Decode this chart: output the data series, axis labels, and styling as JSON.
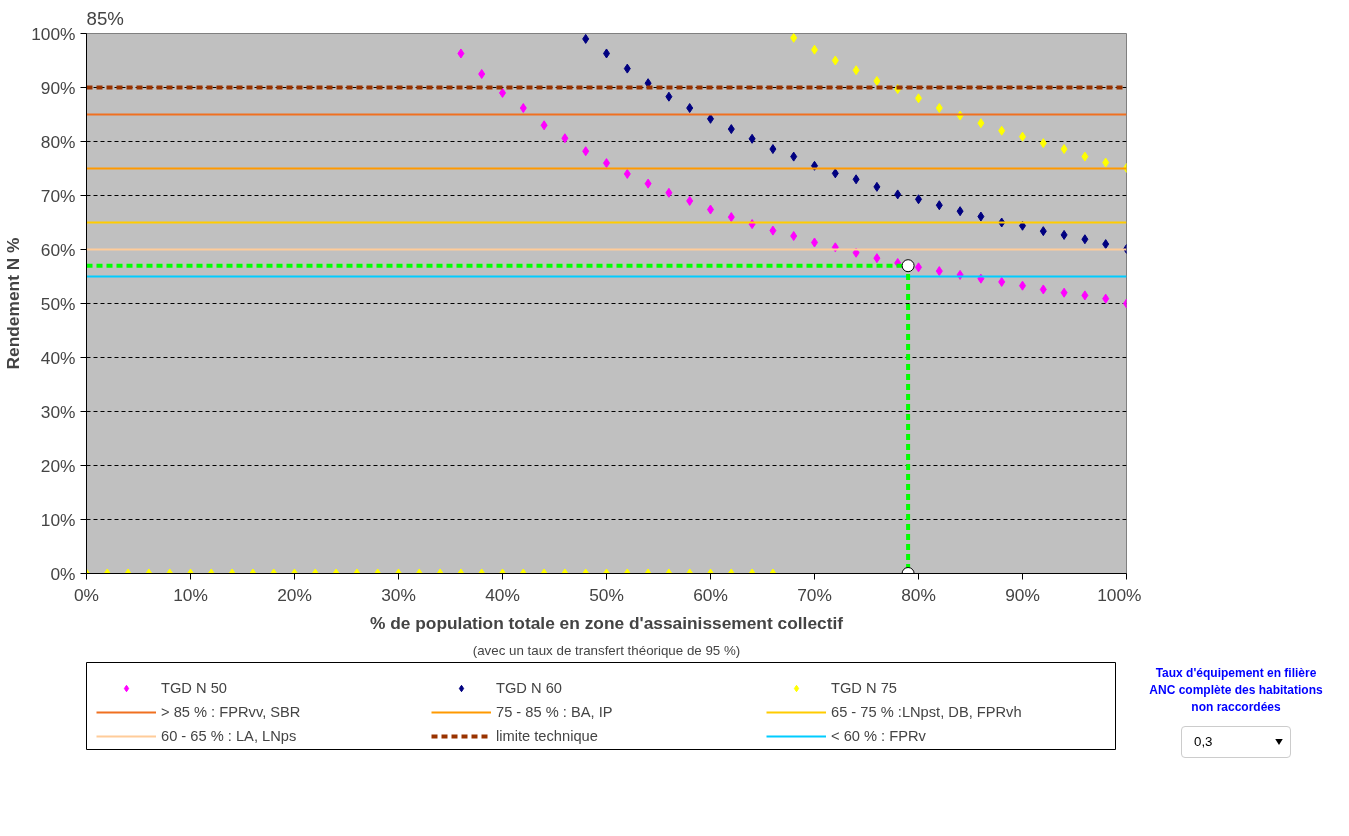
{
  "chart_data": {
    "type": "scatter",
    "xlabel": "% de population totale en zone d'assainissement collectif",
    "ylabel": "Rendement N %",
    "annotations": [
      "85%",
      "(avec un taux de transfert théorique de 95 %)",
      "Taux d'équipement en filière ANC complète des habitations non raccordées",
      "0,3"
    ],
    "x": [
      0,
      2,
      4,
      6,
      8,
      10,
      12,
      14,
      16,
      18,
      20,
      22,
      24,
      26,
      28,
      30,
      32,
      34,
      36,
      38,
      40,
      42,
      44,
      46,
      48,
      50,
      52,
      54,
      56,
      58,
      60,
      62,
      64,
      66,
      68,
      70,
      72,
      74,
      76,
      78,
      80,
      82,
      84,
      86,
      88,
      90,
      92,
      94,
      96,
      98,
      100
    ],
    "xlim": [
      0,
      100
    ],
    "ylim": [
      0,
      100
    ],
    "xticks": [
      {
        "value": 0,
        "label": "0%"
      },
      {
        "value": 10,
        "label": "10%"
      },
      {
        "value": 20,
        "label": "20%"
      },
      {
        "value": 30,
        "label": "30%"
      },
      {
        "value": 40,
        "label": "40%"
      },
      {
        "value": 50,
        "label": "50%"
      },
      {
        "value": 60,
        "label": "60%"
      },
      {
        "value": 70,
        "label": "70%"
      },
      {
        "value": 80,
        "label": "80%"
      },
      {
        "value": 90,
        "label": "90%"
      },
      {
        "value": 100,
        "label": "100%"
      }
    ],
    "yticks": [
      {
        "value": 0,
        "label": "0%"
      },
      {
        "value": 10,
        "label": "10%"
      },
      {
        "value": 20,
        "label": "20%"
      },
      {
        "value": 30,
        "label": "30%"
      },
      {
        "value": 40,
        "label": "40%"
      },
      {
        "value": 50,
        "label": "50%"
      },
      {
        "value": 60,
        "label": "60%"
      },
      {
        "value": 70,
        "label": "70%"
      },
      {
        "value": 80,
        "label": "80%"
      },
      {
        "value": 90,
        "label": "90%"
      },
      {
        "value": 100,
        "label": "100%"
      }
    ],
    "grid": "y",
    "legend": "bottom",
    "marker": "diamond",
    "series": [
      {
        "name": "TGD N 50",
        "color": "#ff00ff",
        "values": [
          null,
          null,
          null,
          null,
          null,
          null,
          null,
          null,
          null,
          null,
          null,
          null,
          null,
          null,
          null,
          null,
          null,
          null,
          96.3,
          92.5,
          89,
          86.2,
          83,
          80.6,
          78.2,
          76,
          74,
          72.2,
          70.5,
          69,
          67.4,
          66,
          64.7,
          63.5,
          62.5,
          61.3,
          60.4,
          59.4,
          58.4,
          57.5,
          56.7,
          56,
          55.3,
          54.6,
          54,
          53.3,
          52.6,
          52,
          51.5,
          50.9,
          50
        ]
      },
      {
        "name": "TGD N 60",
        "color": "#000080",
        "values": [
          null,
          null,
          null,
          null,
          null,
          null,
          null,
          null,
          null,
          null,
          null,
          null,
          null,
          null,
          null,
          null,
          null,
          null,
          null,
          null,
          null,
          null,
          null,
          null,
          99,
          96.3,
          93.5,
          90.8,
          88.3,
          86.2,
          84.2,
          82.3,
          80.5,
          78.6,
          77.2,
          75.5,
          74.1,
          73,
          71.6,
          70.2,
          69.3,
          68.2,
          67.1,
          66.1,
          65,
          64.4,
          63.4,
          62.7,
          61.9,
          61,
          60.1
        ]
      },
      {
        "name": "TGD N 75",
        "color": "#ffff00",
        "values": [
          0,
          0,
          0,
          0,
          0,
          0,
          0,
          0,
          0,
          0,
          0,
          0,
          0,
          0,
          0,
          0,
          0,
          0,
          0,
          0,
          0,
          0,
          0,
          0,
          0,
          0,
          0,
          0,
          0,
          0,
          0,
          0,
          0,
          0,
          99.2,
          97,
          95,
          93.2,
          91.2,
          89.7,
          88,
          86.2,
          84.8,
          83.4,
          82,
          80.9,
          79.7,
          78.6,
          77.2,
          76.1,
          75.1
        ]
      },
      {
        "name": "> 85 % : FPRvv, SBR",
        "type": "line",
        "marker": "none",
        "color": "#f07020",
        "x": [
          0,
          100
        ],
        "values": [
          85,
          85
        ]
      },
      {
        "name": "75 - 85 % : BA, IP",
        "type": "line",
        "marker": "none",
        "color": "#ff9900",
        "x": [
          0,
          100
        ],
        "values": [
          75,
          75
        ]
      },
      {
        "name": "65 - 75 % :LNpst, DB, FPRvh",
        "type": "line",
        "marker": "none",
        "color": "#ffcc00",
        "x": [
          0,
          100
        ],
        "values": [
          65,
          65
        ]
      },
      {
        "name": "60 - 65 % : LA, LNps",
        "type": "line",
        "marker": "none",
        "color": "#ffcc99",
        "x": [
          0,
          100
        ],
        "values": [
          60,
          60
        ]
      },
      {
        "name": "limite technique",
        "type": "line",
        "marker": "none",
        "line_style": "dashed",
        "color": "#993300",
        "x": [
          0,
          100
        ],
        "values": [
          90,
          90
        ]
      },
      {
        "name": "< 60 % : FPRv",
        "type": "line",
        "marker": "none",
        "color": "#00ccff",
        "x": [
          0,
          100
        ],
        "values": [
          55,
          55
        ]
      },
      {
        "type": "line",
        "marker": "none",
        "line_style": "dashed",
        "color": "#00ff00",
        "x": [
          0,
          79,
          79
        ],
        "values": [
          57,
          57,
          0
        ]
      },
      {
        "marker": "circle",
        "color": "#ffffff",
        "x": [
          79,
          79
        ],
        "values": [
          57,
          0
        ]
      }
    ]
  }
}
